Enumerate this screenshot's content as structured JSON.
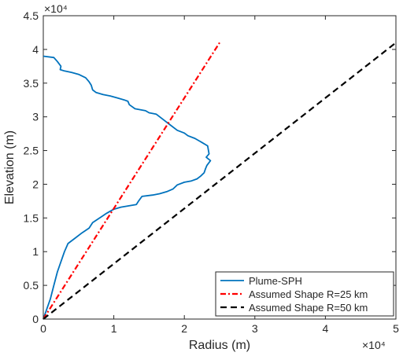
{
  "chart_data": {
    "type": "line",
    "title": "",
    "xlabel": "Radius (m)",
    "ylabel": "Elevation (m)",
    "xlim": [
      0,
      50000
    ],
    "ylim": [
      0,
      45000
    ],
    "x_ticks": [
      0,
      10000,
      20000,
      30000,
      40000,
      50000
    ],
    "x_tick_labels": [
      "0",
      "1",
      "2",
      "3",
      "4",
      "5"
    ],
    "y_ticks": [
      0,
      5000,
      10000,
      15000,
      20000,
      25000,
      30000,
      35000,
      40000,
      45000
    ],
    "y_tick_labels": [
      "0",
      "0.5",
      "1",
      "1.5",
      "2",
      "2.5",
      "3",
      "3.5",
      "4",
      "4.5"
    ],
    "x_exponent_label": "×10⁴",
    "y_exponent_label": "×10⁴",
    "grid": false,
    "legend_position": "bottom-right",
    "series": [
      {
        "name": "Plume-SPH",
        "color": "#0072BD",
        "style": "solid",
        "x": [
          0,
          1500,
          2000,
          2500,
          2400,
          3000,
          4000,
          5000,
          6000,
          6500,
          6800,
          7000,
          7500,
          8500,
          9500,
          10500,
          11500,
          12000,
          12200,
          13000,
          14500,
          15000,
          16000,
          17000,
          18000,
          19000,
          20000,
          20500,
          21500,
          22500,
          23300,
          23500,
          23100,
          23700,
          23200,
          23000,
          22800,
          22300,
          21800,
          21000,
          20000,
          19000,
          18400,
          17500,
          16500,
          15500,
          14000,
          13500,
          13200,
          11000,
          10000,
          9000,
          8000,
          7000,
          6500,
          5500,
          4500,
          3500,
          3000,
          2500,
          2000,
          1500,
          1000,
          500,
          0
        ],
        "y": [
          39000,
          38800,
          38200,
          37500,
          37000,
          36800,
          36600,
          36300,
          35800,
          35200,
          34700,
          34000,
          33600,
          33300,
          33100,
          32800,
          32500,
          32300,
          31800,
          31200,
          30900,
          30600,
          30400,
          29600,
          28800,
          28000,
          27600,
          27200,
          26800,
          26200,
          25700,
          24500,
          24000,
          23500,
          22800,
          22300,
          21700,
          21200,
          20800,
          20500,
          20300,
          19900,
          19300,
          18900,
          18600,
          18400,
          18200,
          17500,
          17000,
          16600,
          16300,
          15700,
          15000,
          14300,
          13500,
          12800,
          12000,
          11200,
          10000,
          8500,
          7000,
          5000,
          3000,
          1500,
          0
        ]
      },
      {
        "name": "Assumed Shape R=25 km",
        "color": "#FF0000",
        "style": "dash-dot",
        "x": [
          0,
          25000
        ],
        "y": [
          0,
          41000
        ]
      },
      {
        "name": "Assumed Shape R=50 km",
        "color": "#000000",
        "style": "dashed",
        "x": [
          0,
          50000
        ],
        "y": [
          0,
          41000
        ]
      }
    ]
  }
}
